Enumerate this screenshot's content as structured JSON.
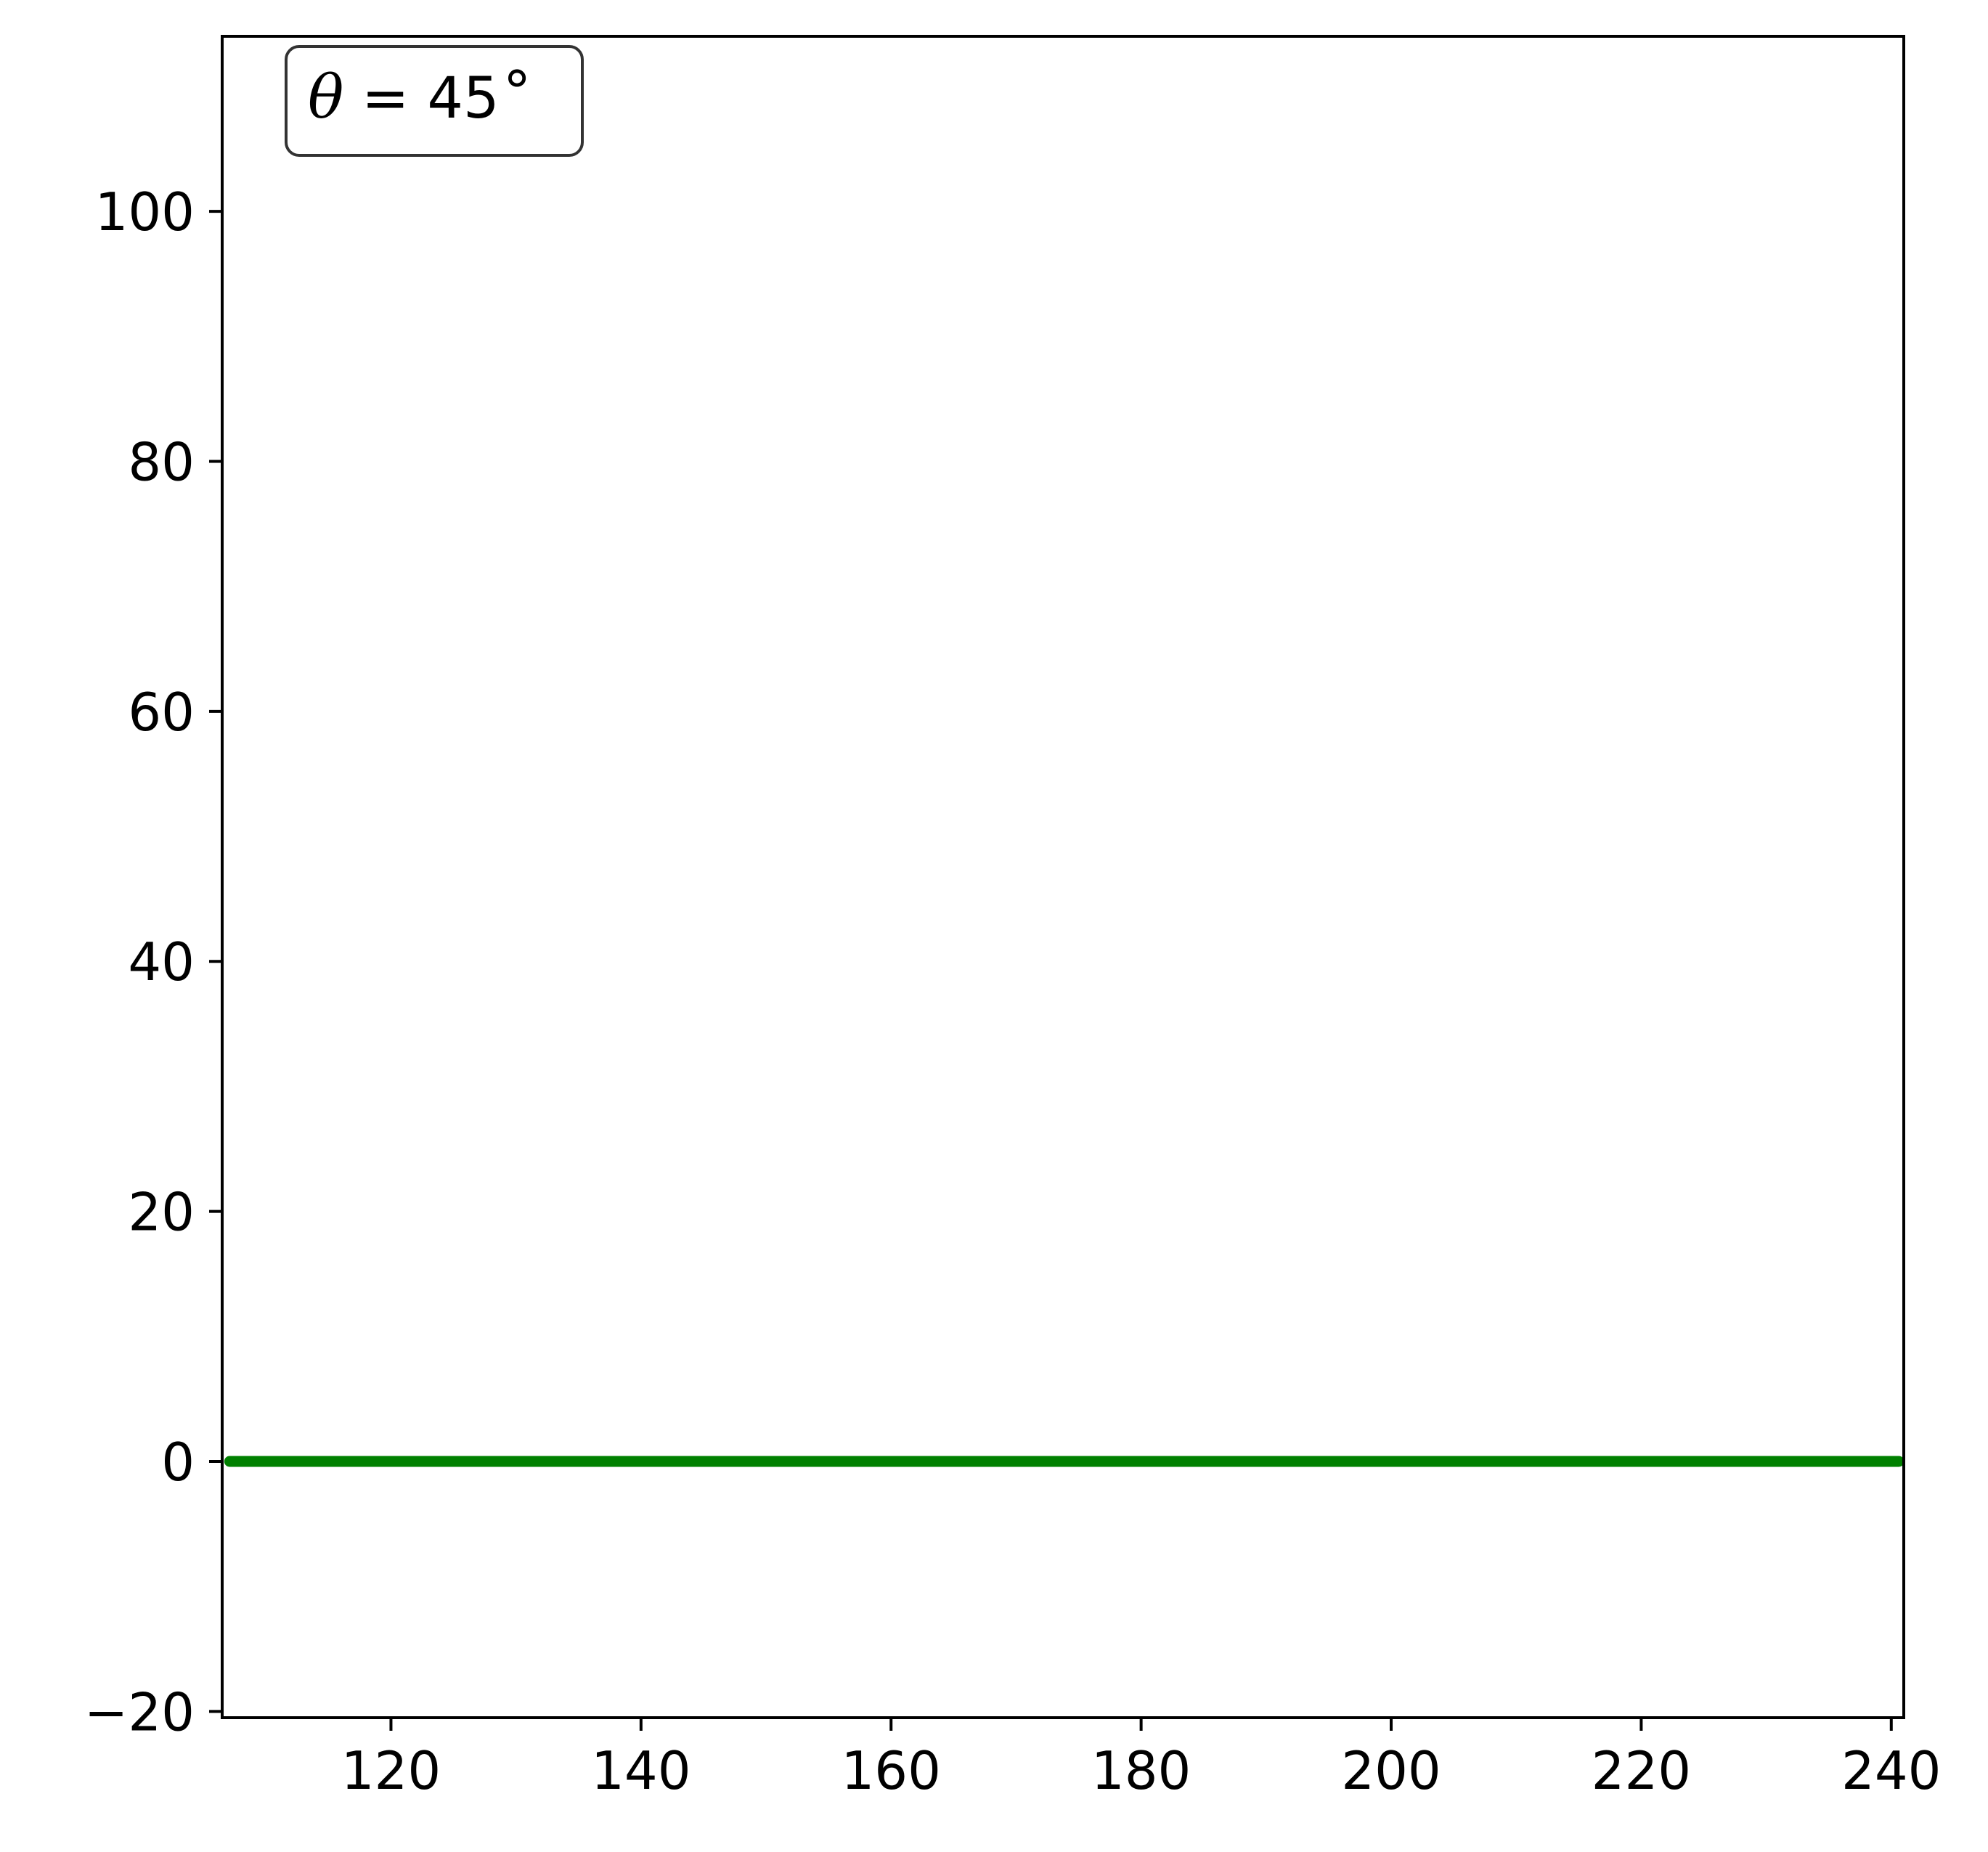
{
  "chart_data": {
    "type": "line",
    "title": "",
    "xlabel": "",
    "ylabel": "",
    "xlim": [
      106.5,
      241
    ],
    "ylim": [
      -20.5,
      114
    ],
    "xticks": [
      120,
      140,
      160,
      180,
      200,
      220,
      240
    ],
    "yticks": [
      -20,
      0,
      20,
      40,
      60,
      80,
      100
    ],
    "xtick_labels": [
      "120",
      "140",
      "160",
      "180",
      "200",
      "220",
      "240"
    ],
    "ytick_labels": [
      "−20",
      "0",
      "20",
      "40",
      "60",
      "80",
      "100"
    ],
    "grid": false,
    "legend": "none",
    "annotation": {
      "symbol": "θ",
      "text": " = 45",
      "degree": "∘",
      "placement": "top-left"
    },
    "series": [
      {
        "color": "#008000",
        "x": [
          186.5,
          187.0,
          186.6,
          185.8,
          186.5,
          187.5,
          188.2,
          188.9,
          189.3,
          188.6,
          187.7,
          186.6,
          185.3,
          184.2,
          183.4,
          183.1,
          183.6,
          184.5,
          184.0,
          183.2,
          182.3,
          181.8,
          182.2,
          183.1,
          184.4,
          185.5,
          185.8,
          185.2,
          186.0,
          187.4,
          188.9,
          190.1,
          190.8,
          190.5,
          189.6,
          190.4,
          191.7,
          193.1,
          194.3,
          195.2,
          195.6,
          195.1,
          193.8,
          192.4,
          191.1,
          189.6,
          188.0,
          186.2,
          184.8,
          183.4,
          182.2,
          181.8,
          181.2,
          180.2,
          178.8,
          177.4,
          176.4,
          175.9,
          176.3,
          176.9,
          175.8,
          175.1,
          175.9,
          177.2,
          178.6,
          179.9,
          180.9,
          181.6,
          181.8,
          181.2,
          181.0,
          181.4,
          182.9,
          185.1,
          187.6,
          189.9,
          191.4,
          192.9,
          193.8,
          194.5,
          195.4,
          196.4,
          197.5,
          198.7,
          199.7,
          200.5,
          200.9,
          200.9,
          200.5,
          199.6,
          198.5,
          197.4,
          196.7,
          196.4,
          196.9,
          197.8,
          198.6,
          199.3,
          200.1,
          201.1,
          202.3,
          203.6,
          204.9,
          205.9,
          206.7,
          207.6,
          209.1,
          211.1,
          213.6,
          216.3,
          219.0,
          221.4,
          223.5,
          225.2,
          226.4,
          227.3,
          227.9,
          228.0,
          227.6,
          226.8,
          225.9,
          225.5,
          225.9,
          226.8,
          227.7,
          228.3,
          228.6,
          228.9,
          229.8,
          231.3,
          232.8,
          233.9,
          234.6,
          235.4,
          236.7,
          238.3,
          239.8,
          240.6,
          240.5,
          239.6,
          238.4,
          237.3,
          236.9,
          237.6,
          238.8,
          239.4,
          238.8,
          237.1,
          235.2,
          233.9,
          233.6,
          234.0,
          233.9,
          232.7,
          230.7,
          229.2,
          228.6,
          229.4,
          231.0,
          232.2,
          232.1,
          230.8,
          229.3,
          228.3,
          227.9,
          226.8,
          224.7,
          222.3,
          220.6,
          220.0,
          220.7,
          221.9,
          222.9,
          223.1,
          222.5,
          221.9,
          222.0,
          222.4,
          221.7,
          219.6,
          216.8,
          214.2,
          212.8,
          212.6,
          213.1,
          213.4,
          212.8,
          211.1,
          208.9,
          206.9,
          205.4,
          204.5,
          204.6,
          205.4,
          206.4,
          207.1,
          207.6,
          208.1,
          208.3,
          208.0,
          206.9,
          205.0,
          202.3,
          199.3,
          196.4,
          193.9,
          191.5,
          188.9,
          186.2,
          184.0,
          182.9,
          183.5,
          185.2,
          187.3,
          189.2,
          190.4,
          190.9,
          190.8,
          190.2,
          189.4,
          188.9,
          189.1,
          190.2,
          192.0,
          194.3,
          196.4,
          197.9,
          198.6,
          198.5,
          197.9,
          197.5,
          197.6,
          198.1,
          198.9,
          199.6,
          200.3,
          201.0,
          201.5,
          201.3,
          200.2,
          198.4,
          196.2,
          194.1,
          192.8,
          192.6,
          193.6,
          195.2,
          196.4,
          196.9,
          196.6,
          195.9,
          195.2,
          194.7,
          194.6,
          195.1,
          196.3,
          197.8,
          199.1,
          199.9,
          200.3,
          200.1,
          199.4,
          198.4,
          197.2,
          196.1,
          195.6,
          196.2,
          197.9,
          200.2,
          202.6,
          204.5,
          205.5,
          205.4,
          204.5,
          203.3,
          202.4,
          202.3,
          202.9,
          203.8,
          204.7,
          205.5,
          206.4,
          207.6,
          208.9,
          209.9,
          210.0,
          209.3,
          208.7,
          209.0,
          210.4,
          212.5,
          214.5,
          215.7,
          215.9,
          215.4,
          214.9,
          214.9,
          215.6,
          216.9,
          218.7,
          220.7,
          222.5,
          223.7,
          224.1,
          223.6,
          222.5,
          221.4,
          220.9,
          221.3,
          222.4,
          224.0,
          225.7,
          227.2,
          228.2,
          228.6,
          228.3,
          227.6,
          227.0,
          226.9,
          227.4,
          228.4,
          229.6,
          230.7,
          231.3,
          231.2,
          230.2,
          228.5,
          226.9,
          226.2,
          226.5,
          227.2,
          227.6,
          227.6,
          227.2,
          226.7,
          226.2,
          225.8,
          225.4,
          224.9,
          224.4,
          223.8,
          222.8,
          220.9,
          218.1,
          215.1,
          212.7,
          211.6,
          212.2,
          213.8,
          215.4,
          216.2,
          216.1,
          215.3,
          214.0,
          212.4,
          211.0,
          210.3,
          210.3,
          210.6,
          210.3,
          209.1,
          207.4,
          205.9,
          205.0,
          204.6,
          204.5,
          204.7,
          205.1,
          205.8,
          206.7,
          207.5,
          207.9,
          207.8,
          207.3,
          206.8,
          206.8,
          207.5,
          208.7,
          210.1,
          211.2,
          211.8,
          211.7,
          211.0,
          210.2,
          209.8,
          209.8,
          209.8,
          209.3,
          208.1,
          206.6,
          205.6,
          205.6,
          206.3,
          206.8,
          206.3,
          204.8,
          202.8,
          200.7,
          198.9,
          197.4,
          196.0,
          194.6,
          193.1,
          191.7,
          190.4,
          189.6,
          189.8,
          190.6,
          191.2,
          191.0,
          190.0,
          188.8,
          187.9,
          187.6,
          187.9,
          188.4,
          188.5,
          188.0,
          187.4,
          187.0,
          187.2,
          187.6,
          187.9,
          188.0,
          188.1,
          188.6,
          189.6,
          190.8,
          191.9,
          192.8,
          193.4,
          193.8,
          193.8,
          193.3,
          192.5,
          191.6,
          190.9,
          190.8,
          191.1,
          191.2,
          190.8,
          189.8,
          188.6,
          187.5,
          186.9,
          186.6,
          186.7,
          187.1,
          187.9,
          188.9,
          189.7,
          190.1,
          189.9,
          189.0,
          187.9,
          187.0,
          186.6,
          186.8,
          187.2,
          187.2,
          186.7,
          185.6,
          184.4,
          183.6,
          183.3,
          183.4,
          183.7,
          183.8,
          183.7,
          183.5,
          183.3,
          183.3,
          183.6,
          184.3,
          185.2,
          185.9,
          186.1,
          185.6,
          184.4,
          182.7,
          180.7,
          178.5,
          176.2,
          173.8,
          171.6,
          169.8,
          168.5,
          167.8,
          167.4,
          166.9,
          166.0,
          164.3,
          162.0,
          159.3,
          156.6,
          154.4,
          153.0,
          152.3,
          151.9,
          151.4,
          150.4,
          149.0,
          147.2,
          145.2,
          143.1,
          141.2,
          139.5,
          137.9,
          136.5,
          135.1,
          133.8,
          132.6,
          131.4,
          130.1,
          128.7,
          127.3,
          125.8,
          124.3,
          122.6,
          120.8,
          118.9,
          117.3,
          116.0,
          115.1,
          114.4,
          113.8,
          113.2,
          112.7,
          112.2,
          111.9,
          111.8,
          111.8,
          111.8,
          111.8,
          111.6,
          111.1,
          110.5,
          109.8,
          109.3,
          109.0,
          109.1,
          109.4,
          109.7,
          109.8,
          109.6,
          109.1,
          108.4,
          107.7,
          107.2,
          107.1,
          107.4,
          107.9,
          108.5,
          109.0,
          109.6,
          110.1,
          110.8,
          111.6,
          112.7,
          114.1,
          115.4,
          116.4,
          116.9,
          116.9,
          116.6,
          116.3,
          116.0,
          115.6,
          115.0,
          114.4,
          113.8,
          113.3,
          113.0,
          112.9,
          113.1,
          113.6,
          114.5,
          115.6,
          116.9,
          118.2,
          119.5,
          120.9,
          122.3,
          123.8,
          125.3,
          126.9,
          128.5,
          130.2,
          131.9,
          133.7,
          135.5,
          137.4,
          139.3,
          141.2,
          143.1,
          145.1,
          147.1,
          149.1,
          151.1,
          153.1,
          155.1,
          157.1,
          159.1,
          161.1,
          163.1,
          165.0,
          166.9,
          168.6,
          170.0,
          171.0,
          171.6,
          171.9,
          172.0,
          172.0,
          172.0,
          172.1,
          172.3,
          172.6,
          172.7,
          172.3,
          171.3,
          169.9,
          168.3,
          166.7,
          165.2,
          163.9,
          163.0,
          162.4,
          162.2,
          162.2,
          162.3,
          162.3,
          162.1,
          161.7,
          161.2,
          160.5,
          159.6,
          158.6,
          157.8,
          157.2,
          157.1,
          157.6,
          158.6,
          160.0,
          161.5,
          163.0,
          164.4,
          165.6,
          166.5,
          167.3,
          168.2,
          169.3,
          170.5,
          171.5,
          172.3,
          173.0,
          173.8,
          174.7,
          175.7,
          176.7,
          177.5,
          178.1,
          178.5,
          179.0,
          179.8,
          180.8,
          181.9,
          183.1,
          184.2,
          185.2,
          186.3,
          187.5,
          188.8,
          190.3,
          192.0,
          193.6,
          195.1,
          196.4,
          197.7,
          199.0,
          200.2,
          201.3,
          202.4,
          203.5,
          204.5,
          205.4,
          206.2,
          206.9,
          207.5,
          207.8,
          207.7,
          207.2,
          206.4,
          205.7,
          205.3,
          205.4,
          205.7,
          205.9,
          205.7,
          205.3,
          205.3,
          205.9,
          207.1,
          208.6,
          210.3,
          212.1,
          213.8,
          215.5,
          217.1,
          218.6,
          219.9,
          221.3,
          222.5,
          223.7,
          224.9,
          226.1,
          227.3,
          228.5,
          229.6,
          230.5,
          231.3,
          232.0,
          232.5,
          232.8,
          233.0,
          233.0,
          232.9,
          232.6,
          232.1,
          231.3,
          230.4,
          229.3,
          228.3,
          227.5,
          227.0,
          226.6,
          226.0,
          224.9,
          223.3,
          221.3,
          219.3,
          217.6,
          216.5,
          216.0,
          216.0,
          216.0,
          215.8,
          215.3,
          214.7,
          214.0,
          213.3,
          212.6,
          211.9,
          211.1,
          210.0,
          208.8,
          207.6,
          206.3,
          205.2,
          204.1,
          203.1,
          202.0,
          201.0,
          200.1,
          199.4,
          198.9,
          198.5,
          198.0,
          197.4,
          196.6,
          195.6,
          194.4,
          193.2,
          192.0,
          190.8,
          189.6,
          188.4,
          187.3,
          186.2,
          185.1,
          183.8,
          182.4,
          181.0,
          179.6,
          178.2,
          176.9,
          175.8,
          174.8,
          174.0,
          173.3,
          172.7,
          172.3,
          172.1,
          172.1,
          172.2,
          172.5,
          172.6,
          172.6,
          172.5,
          172.3,
          172.2,
          172.0,
          171.8,
          171.4,
          170.9,
          170.3,
          169.7,
          169.2,
          168.8,
          168.6,
          168.4,
          168.3,
          168.3,
          168.2,
          168.2,
          168.1,
          168.1,
          168.1,
          168.2,
          168.3,
          168.6,
          169.0,
          169.5,
          170.0,
          170.4,
          170.8,
          171.1,
          171.3,
          171.4,
          171.5,
          171.7,
          171.9,
          172.1,
          172.3,
          172.5,
          172.5,
          172.2,
          171.6,
          170.8,
          169.9,
          169.1,
          168.4,
          167.9,
          167.5,
          167.3,
          167.1,
          166.9,
          166.8,
          166.9,
          167.1,
          167.5,
          168.0,
          168.7,
          169.6,
          170.5,
          171.4,
          172.2,
          172.7,
          173.1,
          173.3,
          173.4,
          173.1,
          172.6,
          171.8,
          171.0,
          170.3,
          169.9,
          169.6,
          169.5,
          169.4,
          169.4,
          169.5,
          169.8,
          170.3,
          170.9,
          171.5,
          172.0,
          172.3,
          172.5,
          172.6,
          172.6,
          172.5,
          172.3,
          172.1,
          172.0,
          172.0,
          172.0,
          171.9,
          171.6,
          171.2,
          170.9,
          170.8,
          171.1,
          171.7,
          172.4,
          173.2,
          173.9,
          174.7,
          175.5,
          176.4,
          177.3,
          178.1,
          178.8,
          179.4,
          180.1,
          180.9,
          181.8,
          182.7,
          183.5,
          184.2,
          184.6,
          184.9,
          185.3,
          185.8,
          186.6,
          187.6,
          188.6,
          189.6,
          190.4,
          191.3,
          192.2,
          193.1,
          194.0,
          194.8,
          195.6,
          196.4,
          197.2,
          197.9,
          198.6,
          199.2,
          199.6,
          199.9,
          200.0,
          200.1,
          200.1,
          200.2,
          200.3,
          200.3,
          200.3,
          200.4,
          200.5,
          200.7,
          200.9,
          201.2,
          201.5,
          201.8,
          202.1,
          202.3,
          202.5,
          202.7,
          202.8,
          202.9,
          203.0,
          203.1,
          203.3,
          203.6,
          204.1,
          204.7,
          205.4,
          206.2,
          207.0,
          207.8,
          208.6,
          209.4,
          210.2,
          211.0,
          211.8,
          212.6,
          213.5,
          214.5,
          215.6,
          216.7,
          217.8,
          218.8,
          219.7,
          220.6,
          221.5,
          222.4,
          223.3,
          224.1,
          224.9,
          225.6,
          226.3,
          226.9,
          227.5,
          228.0,
          228.5,
          228.9,
          229.2,
          229.5,
          229.7,
          229.9,
          230.0,
          230.1,
          230.1,
          230.1,
          230.1,
          230.1,
          230.2,
          230.4,
          230.7,
          231.0,
          231.4,
          231.7,
          232.0,
          232.2,
          232.3,
          232.3,
          232.2,
          232.0,
          231.7,
          231.4,
          231.0,
          230.6,
          230.2,
          229.9,
          229.6,
          229.3,
          229.1,
          229.0,
          229.0,
          229.0,
          229.1,
          229.3,
          229.5,
          229.8,
          230.0,
          230.2,
          230.3,
          230.4,
          230.4,
          230.3,
          230.2,
          230.0,
          229.8,
          229.6,
          229.4,
          229.3,
          229.2,
          229.2,
          229.2,
          229.3,
          229.4,
          229.5,
          229.6,
          229.7,
          229.7,
          229.7,
          229.6,
          229.5,
          229.4,
          229.3,
          229.2,
          229.1,
          229.0,
          229.0,
          229.0,
          229.1,
          229.2,
          229.3,
          229.4,
          229.5,
          229.6,
          229.7,
          229.8,
          229.8
        ]
      }
    ]
  }
}
